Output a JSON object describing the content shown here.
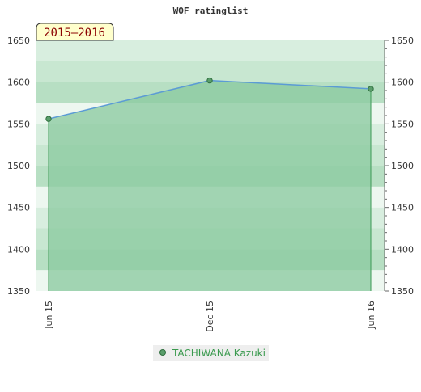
{
  "chart_data": {
    "type": "area",
    "title": "WOF ratinglist",
    "period_label": "2015–2016",
    "x": [
      "Jun 15",
      "Dec 15",
      "Jun 16"
    ],
    "series": [
      {
        "name": "TACHIWANA Kazuki",
        "values": [
          1556,
          1602,
          1592
        ]
      }
    ],
    "ylim": [
      1350,
      1650
    ],
    "yticks": [
      1350,
      1400,
      1450,
      1500,
      1550,
      1600,
      1650
    ],
    "y_axes": "left-and-right",
    "grid": false,
    "legend": "bottom-center",
    "colors": {
      "line": "#5b9bd5",
      "area": "#8ccba0",
      "marker": "#5a9e6b",
      "marker_stroke": "#2f6e3e",
      "drop_line": "#3c9a55",
      "period_box": "#ffffcc",
      "legend_text": "#3a9a4e"
    }
  }
}
